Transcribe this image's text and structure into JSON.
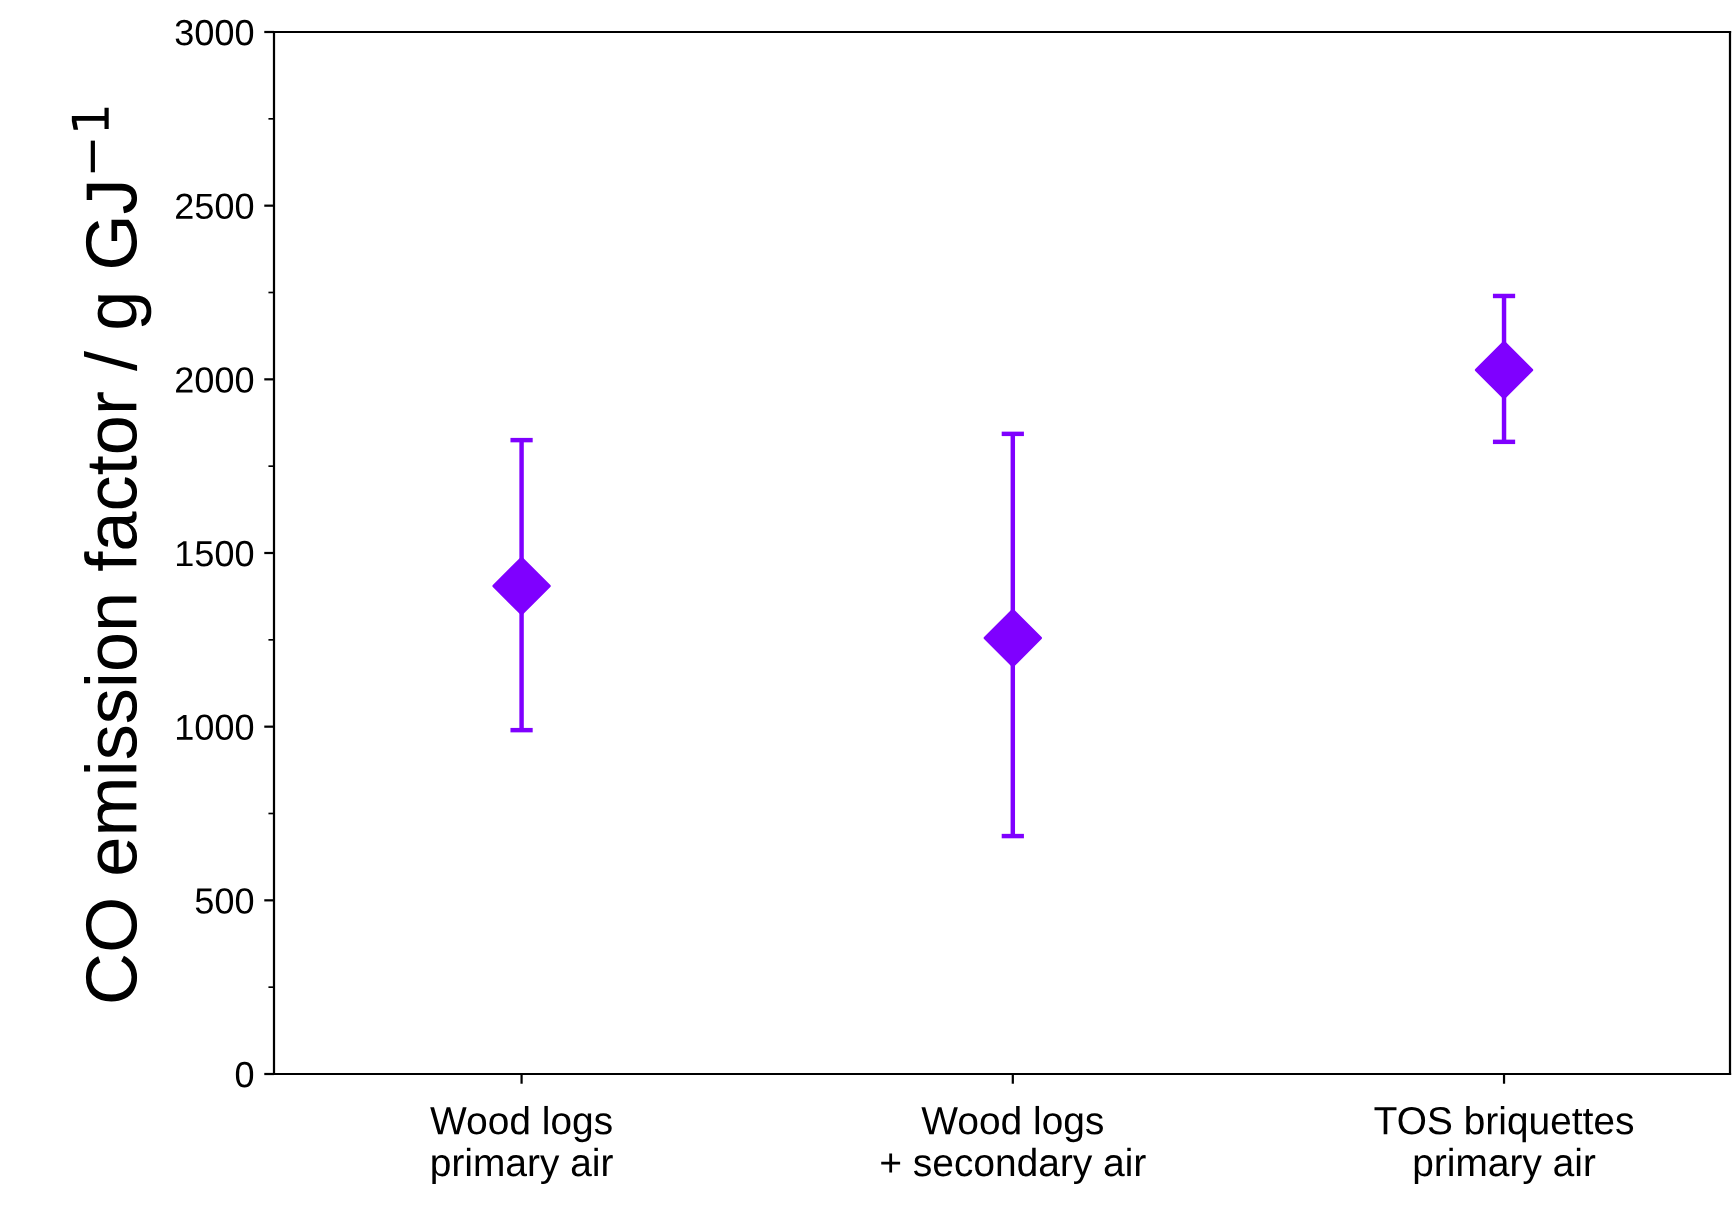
{
  "chart_data": {
    "type": "scatter",
    "ylabel": "CO emission factor / g GJ$^{−1}$",
    "categories": [
      "Wood logs\nprimary air",
      "Wood logs\n+ secondary air",
      "TOS briquettes\nprimary air"
    ],
    "values": [
      1405,
      1255,
      2027
    ],
    "errors": [
      [
        990,
        1825
      ],
      [
        685,
        1843
      ],
      [
        1820,
        2240
      ]
    ],
    "color": "#7f00ff",
    "marker": "diamond",
    "ylim": [
      0,
      3000
    ],
    "yticks": [
      0,
      500,
      1000,
      1500,
      2000,
      2500,
      3000
    ],
    "grid": false,
    "legend": false
  }
}
